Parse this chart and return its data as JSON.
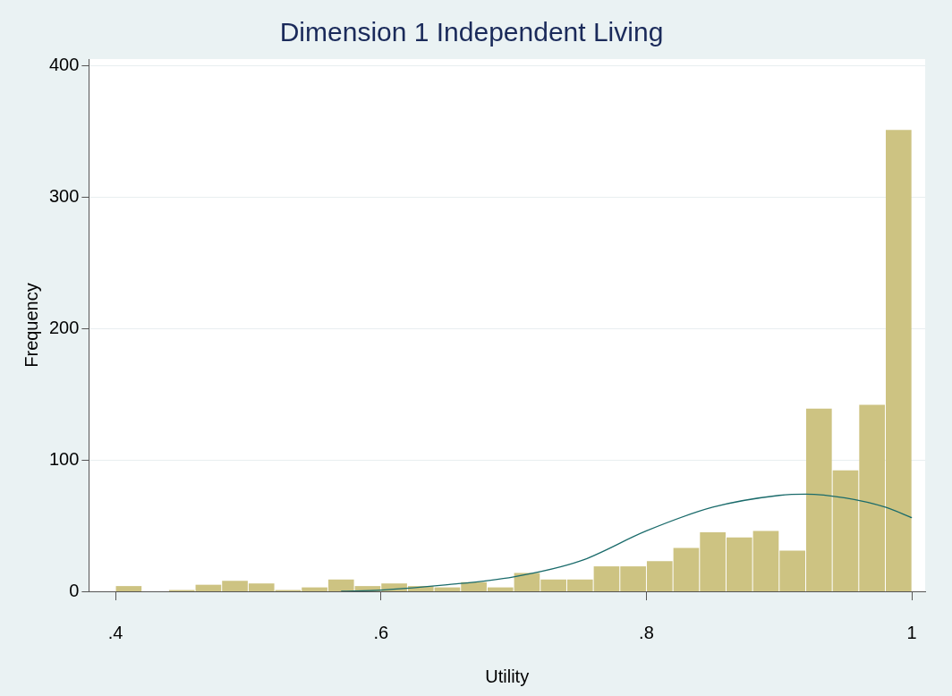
{
  "chart_data": {
    "type": "histogram",
    "title": "Dimension 1 Independent Living",
    "xlabel": "Utility",
    "ylabel": "Frequency",
    "bins": [
      0.4,
      0.42,
      0.44,
      0.46,
      0.48,
      0.5,
      0.52,
      0.54,
      0.56,
      0.58,
      0.6,
      0.62,
      0.64,
      0.66,
      0.68,
      0.7,
      0.72,
      0.74,
      0.76,
      0.78,
      0.8,
      0.82,
      0.84,
      0.86,
      0.88,
      0.9,
      0.92,
      0.94,
      0.96,
      0.98,
      1.0
    ],
    "values": [
      4,
      0,
      1,
      5,
      8,
      6,
      1,
      3,
      9,
      4,
      6,
      4,
      3,
      7,
      3,
      14,
      9,
      9,
      19,
      19,
      23,
      33,
      45,
      41,
      46,
      31,
      139,
      92,
      142,
      351
    ],
    "color": "#cdc382",
    "series": [
      {
        "type": "line",
        "color": "#1a6b6b",
        "x": [
          0.57,
          0.6,
          0.65,
          0.7,
          0.75,
          0.8,
          0.85,
          0.9,
          0.92,
          0.95,
          0.98,
          1.0
        ],
        "values": [
          0,
          1,
          5,
          11,
          23,
          46,
          64,
          73,
          74,
          71,
          64,
          56
        ]
      }
    ],
    "xlim": [
      0.38,
      1.01
    ],
    "xticks": [
      {
        "value": 0.4,
        "label": ".4"
      },
      {
        "value": 0.6,
        "label": ".6"
      },
      {
        "value": 0.8,
        "label": ".8"
      },
      1
    ],
    "ylim": [
      0,
      405
    ],
    "yticks": [
      0,
      100,
      200,
      300,
      400
    ],
    "grid": "y",
    "legend": false
  }
}
